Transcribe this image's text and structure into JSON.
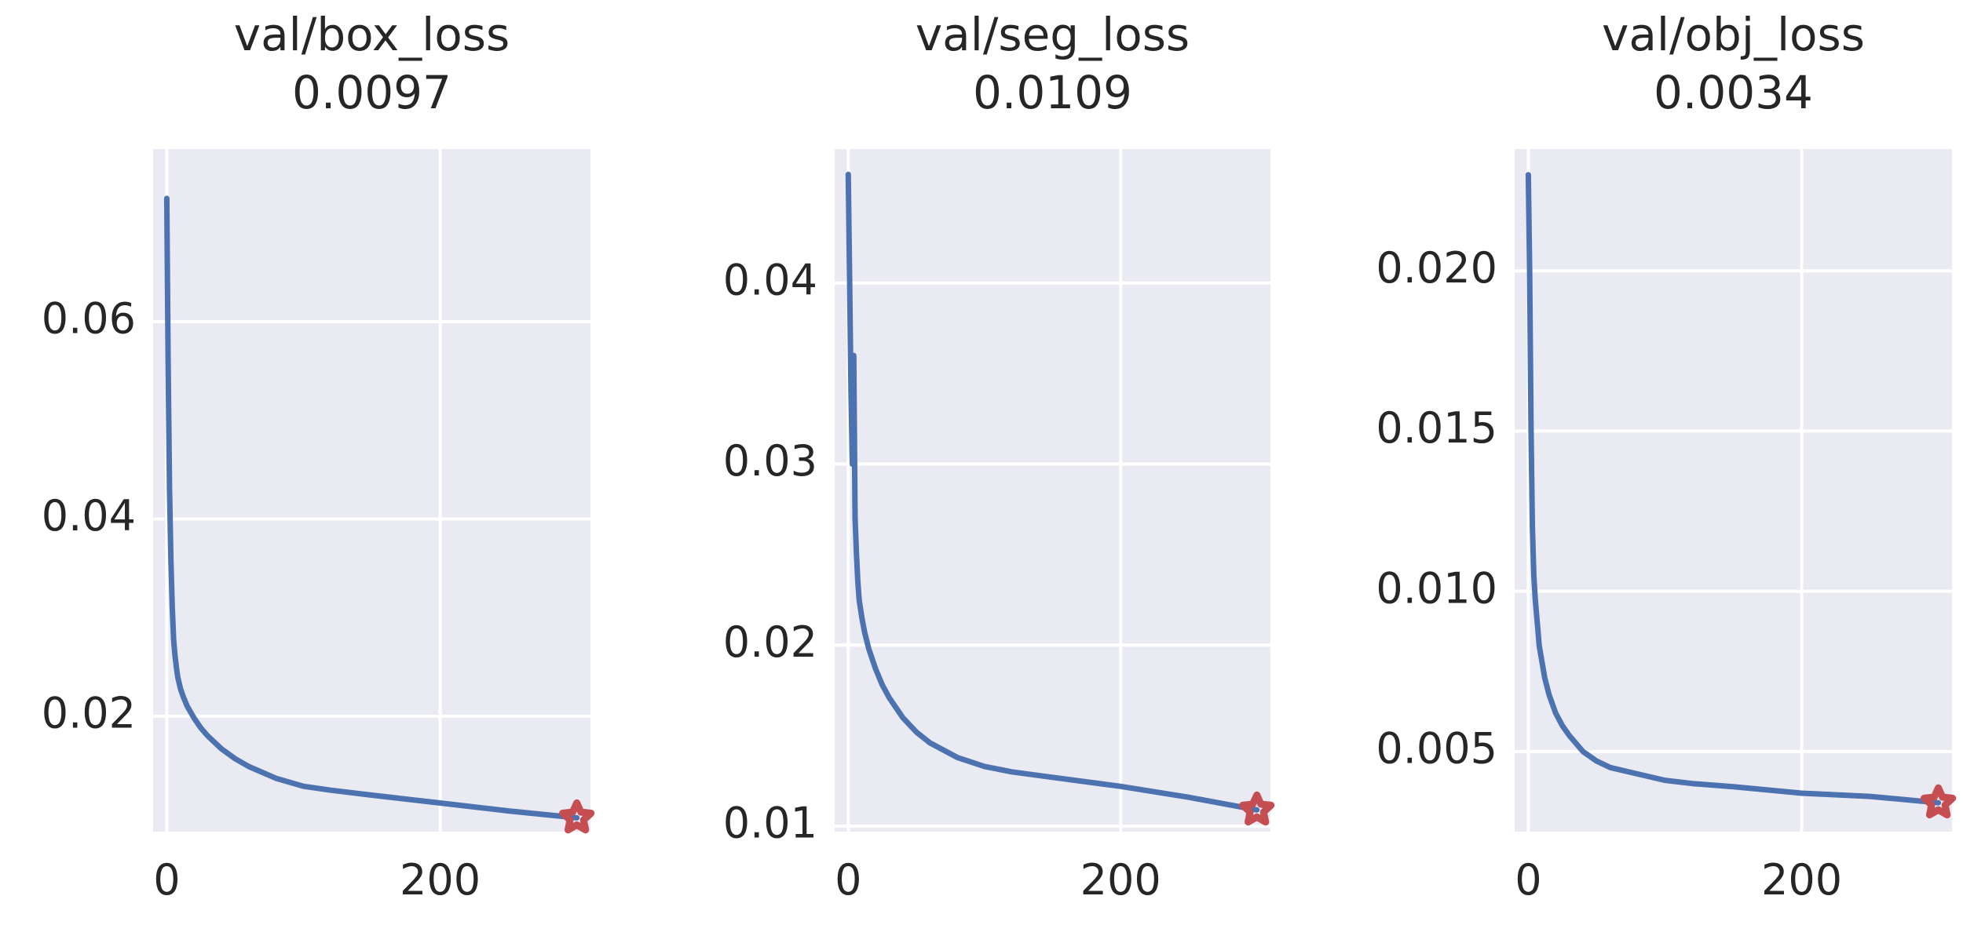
{
  "chart_data": [
    {
      "type": "line",
      "title": "val/box_loss",
      "subtitle": "0.0097",
      "xlabel": "",
      "ylabel": "",
      "xlim": [
        -10,
        310
      ],
      "ylim": [
        0.0083,
        0.0775
      ],
      "xticks": [
        0,
        200
      ],
      "yticks": [
        0.02,
        0.04,
        0.06
      ],
      "ytick_labels": [
        "0.02",
        "0.04",
        "0.06"
      ],
      "grid": true,
      "series": [
        {
          "x": [
            0,
            1,
            2,
            3,
            4,
            5,
            6,
            7,
            8,
            10,
            12,
            15,
            20,
            25,
            30,
            40,
            50,
            60,
            80,
            100,
            120,
            150,
            200,
            250,
            300
          ],
          "y": [
            0.0725,
            0.056,
            0.043,
            0.036,
            0.031,
            0.0278,
            0.0262,
            0.025,
            0.024,
            0.0228,
            0.022,
            0.021,
            0.0198,
            0.0188,
            0.018,
            0.0167,
            0.0157,
            0.0149,
            0.0137,
            0.0129,
            0.0125,
            0.012,
            0.0112,
            0.0104,
            0.0097
          ]
        }
      ],
      "best_marker": {
        "x": 300,
        "y": 0.0097,
        "color": "#c44e52"
      }
    },
    {
      "type": "line",
      "title": "val/seg_loss",
      "subtitle": "0.0109",
      "xlabel": "",
      "ylabel": "",
      "xlim": [
        -10,
        310
      ],
      "ylim": [
        0.0097,
        0.0474
      ],
      "xticks": [
        0,
        200
      ],
      "yticks": [
        0.01,
        0.02,
        0.03,
        0.04
      ],
      "ytick_labels": [
        "0.01",
        "0.02",
        "0.03",
        "0.04"
      ],
      "grid": true,
      "series": [
        {
          "x": [
            0,
            1,
            2,
            3,
            4,
            5,
            6,
            7,
            8,
            10,
            12,
            15,
            20,
            25,
            30,
            40,
            50,
            60,
            80,
            100,
            120,
            150,
            200,
            250,
            300
          ],
          "y": [
            0.046,
            0.04,
            0.034,
            0.03,
            0.036,
            0.027,
            0.025,
            0.0235,
            0.0225,
            0.0215,
            0.0207,
            0.0198,
            0.0187,
            0.0178,
            0.0171,
            0.016,
            0.0152,
            0.0146,
            0.0138,
            0.0133,
            0.013,
            0.0127,
            0.0122,
            0.0116,
            0.0109
          ]
        }
      ],
      "best_marker": {
        "x": 300,
        "y": 0.0109,
        "color": "#c44e52"
      }
    },
    {
      "type": "line",
      "title": "val/obj_loss",
      "subtitle": "0.0034",
      "xlabel": "",
      "ylabel": "",
      "xlim": [
        -10,
        310
      ],
      "ylim": [
        0.0025,
        0.0238
      ],
      "xticks": [
        0,
        200
      ],
      "yticks": [
        0.005,
        0.01,
        0.015,
        0.02
      ],
      "ytick_labels": [
        "0.005",
        "0.010",
        "0.015",
        "0.020"
      ],
      "grid": true,
      "series": [
        {
          "x": [
            0,
            1,
            2,
            3,
            4,
            5,
            6,
            7,
            8,
            10,
            12,
            15,
            20,
            25,
            30,
            40,
            50,
            60,
            80,
            100,
            120,
            150,
            200,
            250,
            300
          ],
          "y": [
            0.023,
            0.02,
            0.015,
            0.012,
            0.0105,
            0.0098,
            0.0093,
            0.0088,
            0.0083,
            0.0078,
            0.0073,
            0.0068,
            0.0062,
            0.0058,
            0.0055,
            0.005,
            0.0047,
            0.0045,
            0.0043,
            0.0041,
            0.004,
            0.0039,
            0.0037,
            0.0036,
            0.0034
          ]
        }
      ],
      "best_marker": {
        "x": 300,
        "y": 0.0034,
        "color": "#c44e52"
      }
    }
  ],
  "style": {
    "plot_background": "#eaeaf2",
    "grid_color": "#ffffff",
    "line_color": "#4c72b0",
    "text_color": "#262626"
  }
}
